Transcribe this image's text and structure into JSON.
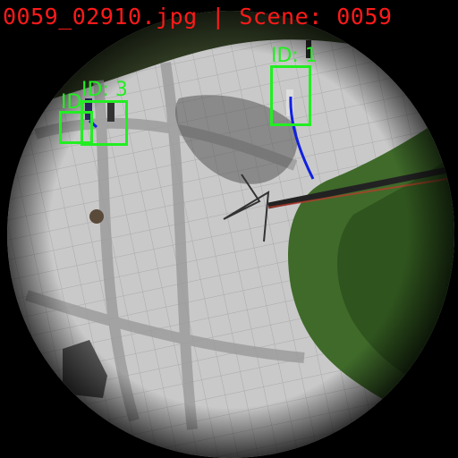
{
  "overlay": {
    "caption": "0059_02910.jpg | Scene: 0059",
    "detections": [
      {
        "label": "ID: 1"
      },
      {
        "label": "ID: 3"
      },
      {
        "label": "ID"
      }
    ]
  },
  "colors": {
    "caption": "#ff1a1a",
    "box": "#22ee22",
    "track": "#1020e0"
  }
}
